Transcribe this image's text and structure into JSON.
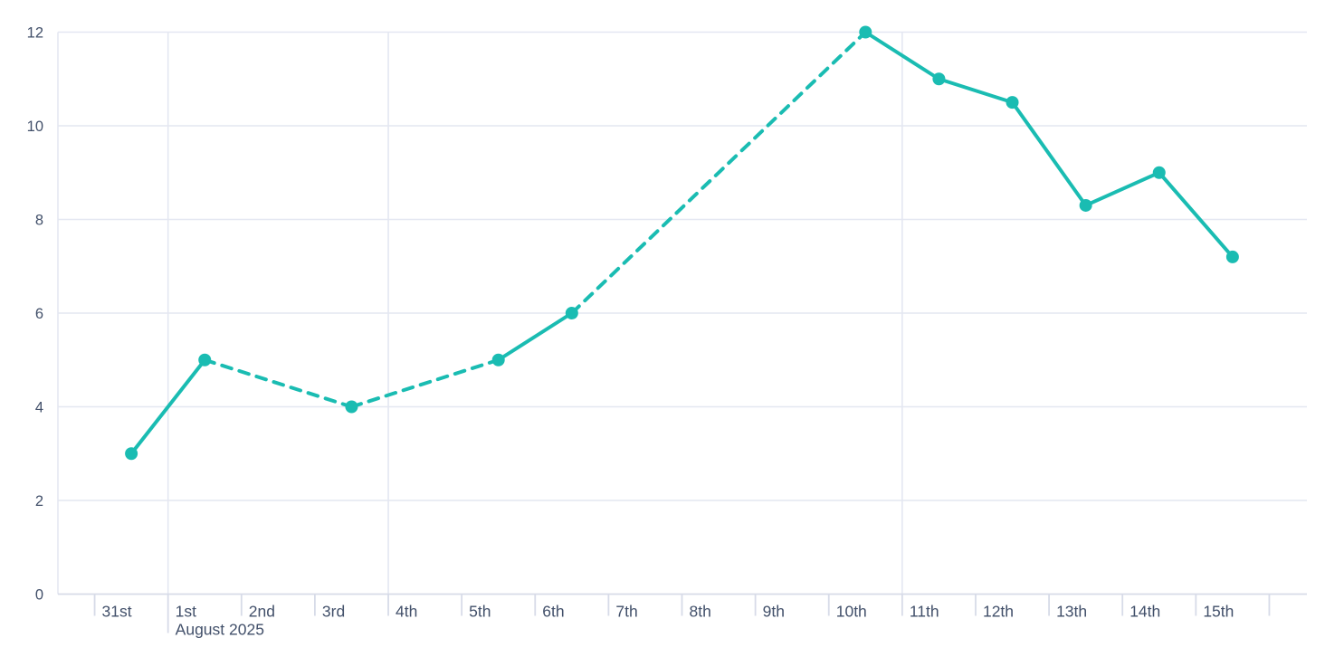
{
  "page": {
    "background_color": "#ffffff"
  },
  "chart_data": {
    "type": "line",
    "title": "",
    "subtitle": "",
    "legend": null,
    "colors": {
      "series_teal": "#1abcb2",
      "axis_text": "#42506a",
      "gridline": "#e4e7f1",
      "axis_line": "#d7dbe8"
    },
    "x_axis": {
      "kind": "time",
      "tick_labels": [
        "31st",
        "1st",
        "2nd",
        "3rd",
        "4th",
        "5th",
        "6th",
        "7th",
        "8th",
        "9th",
        "10th",
        "11th",
        "12th",
        "13th",
        "14th",
        "15th"
      ],
      "month_label": "August 2025",
      "month_label_under_tick": "1st",
      "days_shown": 17,
      "vertical_gridline_day_offsets": [
        1,
        4,
        11
      ]
    },
    "y_axis": {
      "min": 0,
      "max": 12,
      "tick_values": [
        0,
        2,
        4,
        6,
        8,
        10,
        12
      ],
      "tick_labels": [
        "0",
        "2",
        "4",
        "6",
        "8",
        "10",
        "12"
      ]
    },
    "grid": {
      "horizontal": true,
      "vertical": "weekly-and-month-boundaries",
      "legend_position": "none"
    },
    "series": [
      {
        "name": "daily-values",
        "color": "#1abcb2",
        "marker": "circle",
        "points": [
          {
            "label": "31st",
            "day_offset": 0,
            "value": 3
          },
          {
            "label": "1st",
            "day_offset": 1,
            "value": 5
          },
          {
            "label": "3rd",
            "day_offset": 3,
            "value": 4
          },
          {
            "label": "5th",
            "day_offset": 5,
            "value": 5
          },
          {
            "label": "6th",
            "day_offset": 6,
            "value": 6
          },
          {
            "label": "10th",
            "day_offset": 10,
            "value": 12
          },
          {
            "label": "11th",
            "day_offset": 11,
            "value": 11
          },
          {
            "label": "12th",
            "day_offset": 12,
            "value": 10.5
          },
          {
            "label": "13th",
            "day_offset": 13,
            "value": 8.3
          },
          {
            "label": "14th",
            "day_offset": 14,
            "value": 9
          },
          {
            "label": "15th",
            "day_offset": 15,
            "value": 7.2
          }
        ],
        "segment_styles": [
          "solid",
          "dashed",
          "dashed",
          "solid",
          "dashed",
          "solid",
          "solid",
          "solid",
          "solid",
          "solid"
        ]
      }
    ]
  }
}
